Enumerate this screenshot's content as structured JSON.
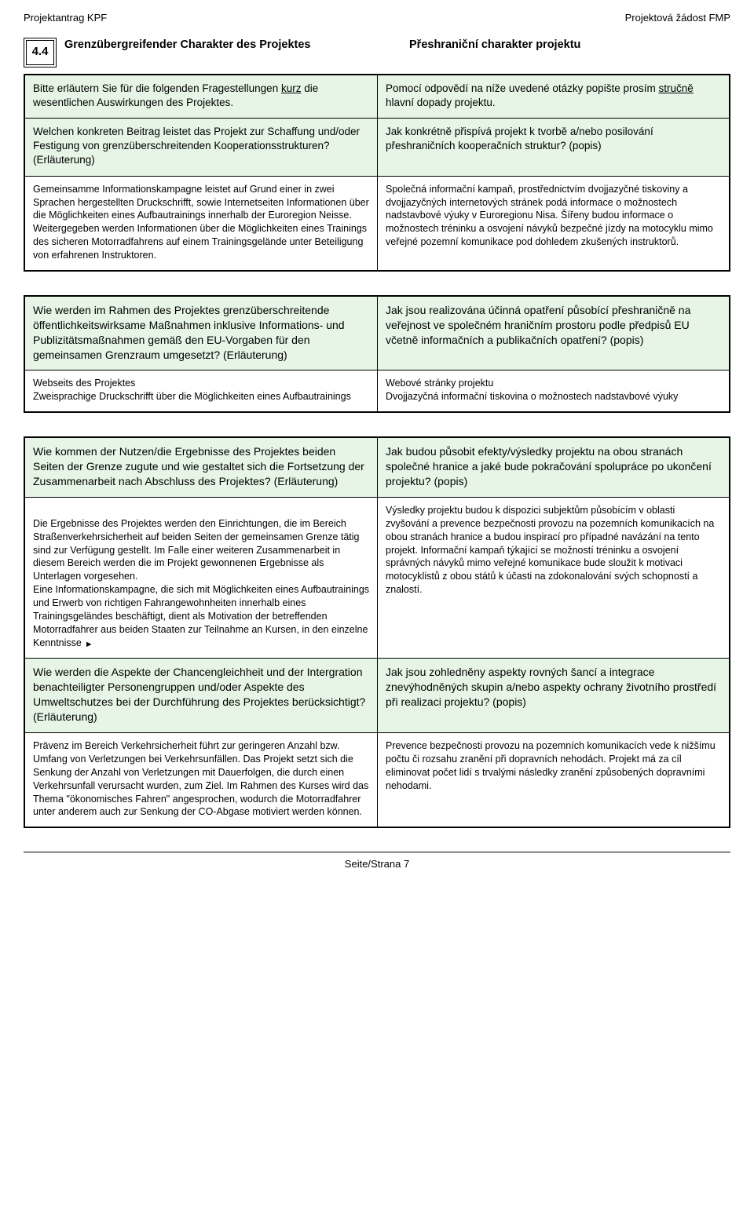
{
  "header": {
    "left": "Projektantrag KPF",
    "right": "Projektová žádost FMP"
  },
  "section": {
    "number": "4.4",
    "title_de": "Grenzübergreifender Charakter des Projektes",
    "title_cz": "Přeshraniční charakter projektu"
  },
  "t1": {
    "r1": {
      "de_pre": "Bitte erläutern Sie für die folgenden Fragestellungen ",
      "de_u": "kurz",
      "de_post": " die wesentlichen Auswirkungen des Projektes.",
      "cz_pre": "Pomocí odpovědí na níže uvedené otázky popište prosím ",
      "cz_u": "stručně",
      "cz_post": " hlavní dopady projektu."
    },
    "r2": {
      "de": "Welchen konkreten Beitrag leistet das Projekt zur Schaffung und/oder Festigung von grenzüberschreitenden Kooperationsstrukturen? (Erläuterung)",
      "cz": "Jak konkrétně přispívá projekt k tvorbě a/nebo posilování přeshraničních kooperačních struktur? (popis)"
    },
    "r3": {
      "de": "Gemeinsamme Informationskampagne leistet auf Grund einer in zwei Sprachen hergestellten Druckschrifft, sowie Internetseiten Informationen über die Möglichkeiten eines Aufbautrainings innerhalb der Euroregion Neisse. Weitergegeben werden Informationen über die Möglichkeiten eines Trainings des sicheren Motorradfahrens auf einem Trainingsgelände unter Beteiligung von erfahrenen Instruktoren.",
      "cz": "Společná informační kampaň, prostřednictvím dvojjazyčné tiskoviny a dvojjazyčných internetových stránek podá informace o možnostech nadstavbové výuky v Euroregionu Nisa. Šířeny budou informace o možnostech tréninku a osvojení návyků bezpečné jízdy na motocyklu mimo veřejné pozemní komunikace pod dohledem zkušených instruktorů."
    }
  },
  "t2": {
    "r1": {
      "de": "Wie werden im Rahmen des Projektes grenzüberschreitende öffentlichkeitswirksame Maßnahmen inklusive Informations- und Publizitätsmaßnahmen gemäß den EU-Vorgaben für den gemeinsamen Grenzraum umgesetzt? (Erläuterung)",
      "cz": "Jak jsou realizována účinná opatření působící přeshraničně na veřejnost ve společném hraničním prostoru podle předpisů EU včetně informačních a publikačních opatření? (popis)"
    },
    "r2": {
      "de": "Webseits des Projektes\nZweisprachige Druckschrifft über die Möglichkeiten eines Aufbautrainings",
      "cz": "Webové stránky projektu\nDvojjazyčná informační tiskovina o možnostech nadstavbové výuky"
    }
  },
  "t3": {
    "r1": {
      "de": "Wie kommen der Nutzen/die Ergebnisse des Projektes beiden Seiten der Grenze zugute und wie gestaltet sich die Fortsetzung der Zusammenarbeit nach Abschluss des Projektes? (Erläuterung)",
      "cz": "Jak budou působit efekty/výsledky projektu na obou stranách společné hranice a jaké bude pokračování spolupráce po ukončení projektu? (popis)"
    },
    "r2": {
      "de_main": "Die Ergebnisse des Projektes werden den Einrichtungen, die im Bereich Straßenverkehrsicherheit auf beiden Seiten der gemeinsamen Grenze tätig sind zur Verfügung gestellt. Im Falle einer weiteren Zusammenarbeit in diesem Bereich werden die im Projekt gewonnenen Ergebnisse als Unterlagen vorgesehen.\nEine Informationskampagne, die sich mit Möglichkeiten eines Aufbautrainings und Erwerb von richtigen Fahrangewohnheiten innerhalb eines Trainingsgeländes beschäftigt, dient als Motivation der betreffenden Motorradfahrer aus beiden Staaten zur Teilnahme an Kursen, in den einzelne Kenntnisse",
      "cz": "Výsledky projektu budou k dispozici subjektům působícím v oblasti zvyšování a prevence bezpečnosti provozu na pozemních komunikacích na obou stranách hranice a budou inspirací pro případné navázání na tento projekt. Informační kampaň týkající se možností tréninku a osvojení správných návyků mimo veřejné komunikace bude sloužit k motivaci motocyklistů z obou států k účasti na zdokonalování svých schopností a znalostí."
    },
    "r3": {
      "de": "Wie werden die Aspekte der Chancengleichheit und der Intergration benachteiligter Personengruppen und/oder Aspekte des Umweltschutzes bei der Durchführung des Projektes berücksichtigt? (Erläuterung)",
      "cz": "Jak jsou zohledněny aspekty rovných šancí a integrace znevýhodněných skupin a/nebo aspekty ochrany životního prostředí při realizaci projektu? (popis)"
    },
    "r4": {
      "de": "Prävenz im Bereich Verkehrsicherheit führt zur geringeren Anzahl bzw. Umfang von Verletzungen bei Verkehrsunfällen. Das Projekt setzt sich die Senkung der Anzahl von Verletzungen mit Dauerfolgen, die durch einen Verkehrsunfall verursacht wurden, zum Ziel. Im Rahmen des Kurses wird das Thema \"ökonomisches Fahren\" angesprochen, wodurch die Motorradfahrer unter anderem auch zur Senkung der CO-Abgase motiviert werden können.",
      "cz": "Prevence bezpečnosti provozu na pozemních komunikacích vede k nižšímu počtu či rozsahu zranění při dopravních nehodách. Projekt má za cíl eliminovat počet lidí s trvalými následky zranění způsobených dopravními nehodami."
    }
  },
  "footer": "Seite/Strana 7"
}
